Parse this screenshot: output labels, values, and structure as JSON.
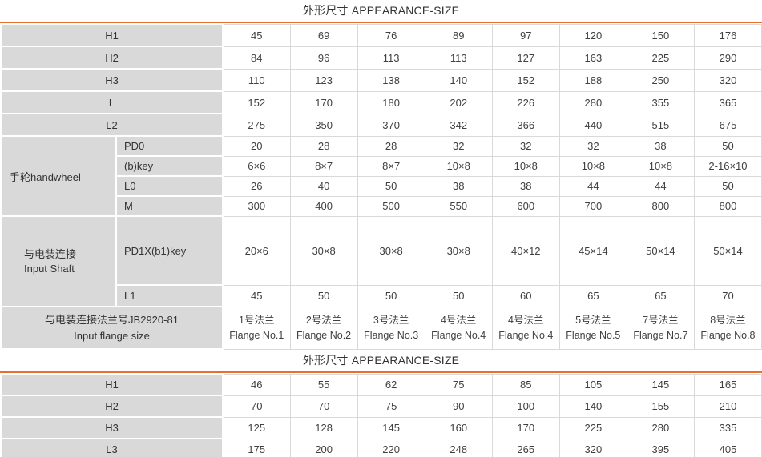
{
  "accent_color": "#E8702E",
  "label_bg": "#D9D9D9",
  "table1": {
    "title": "外形尺寸 APPEARANCE-SIZE",
    "rows": [
      {
        "label": "H1",
        "values": [
          "45",
          "69",
          "76",
          "89",
          "97",
          "120",
          "150",
          "176"
        ]
      },
      {
        "label": "H2",
        "values": [
          "84",
          "96",
          "113",
          "113",
          "127",
          "163",
          "225",
          "290"
        ]
      },
      {
        "label": "H3",
        "values": [
          "110",
          "123",
          "138",
          "140",
          "152",
          "188",
          "250",
          "320"
        ]
      },
      {
        "label": "L",
        "values": [
          "152",
          "170",
          "180",
          "202",
          "226",
          "280",
          "355",
          "365"
        ]
      },
      {
        "label": "L2",
        "values": [
          "275",
          "350",
          "370",
          "342",
          "366",
          "440",
          "515",
          "675"
        ]
      }
    ],
    "handwheel": {
      "label": "手轮handwheel",
      "rows": [
        {
          "label": "PD0",
          "values": [
            "20",
            "28",
            "28",
            "32",
            "32",
            "32",
            "38",
            "50"
          ]
        },
        {
          "label": "(b)key",
          "values": [
            "6×6",
            "8×7",
            "8×7",
            "10×8",
            "10×8",
            "10×8",
            "10×8",
            "2-16×10"
          ]
        },
        {
          "label": "L0",
          "values": [
            "26",
            "40",
            "50",
            "38",
            "38",
            "44",
            "44",
            "50"
          ]
        },
        {
          "label": "M",
          "values": [
            "300",
            "400",
            "500",
            "550",
            "600",
            "700",
            "800",
            "800"
          ]
        }
      ]
    },
    "input_shaft": {
      "label_cn": "与电装连接",
      "label_en": "Input Shaft",
      "rows": [
        {
          "label": "PD1X(b1)key",
          "values": [
            "20×6",
            "30×8",
            "30×8",
            "30×8",
            "40×12",
            "45×14",
            "50×14",
            "50×14"
          ]
        },
        {
          "label": "L1",
          "values": [
            "45",
            "50",
            "50",
            "50",
            "60",
            "65",
            "65",
            "70"
          ]
        }
      ]
    },
    "flange": {
      "label_cn": "与电装连接法兰号JB2920-81",
      "label_en": "Input flange size",
      "cells": [
        {
          "cn": "1号法兰",
          "en": "Flange No.1"
        },
        {
          "cn": "2号法兰",
          "en": "Flange No.2"
        },
        {
          "cn": "3号法兰",
          "en": "Flange No.3"
        },
        {
          "cn": "4号法兰",
          "en": "Flange No.4"
        },
        {
          "cn": "4号法兰",
          "en": "Flange No.4"
        },
        {
          "cn": "5号法兰",
          "en": "Flange No.5"
        },
        {
          "cn": "7号法兰",
          "en": "Flange No.7"
        },
        {
          "cn": "8号法兰",
          "en": "Flange No.8"
        }
      ]
    }
  },
  "table2": {
    "title": "外形尺寸 APPEARANCE-SIZE",
    "rows": [
      {
        "label": "H1",
        "values": [
          "46",
          "55",
          "62",
          "75",
          "85",
          "105",
          "145",
          "165"
        ]
      },
      {
        "label": "H2",
        "values": [
          "70",
          "70",
          "75",
          "90",
          "100",
          "140",
          "155",
          "210"
        ]
      },
      {
        "label": "H3",
        "values": [
          "125",
          "128",
          "145",
          "160",
          "170",
          "225",
          "280",
          "335"
        ]
      },
      {
        "label": "L3",
        "values": [
          "175",
          "200",
          "220",
          "248",
          "265",
          "320",
          "395",
          "405"
        ]
      }
    ]
  }
}
